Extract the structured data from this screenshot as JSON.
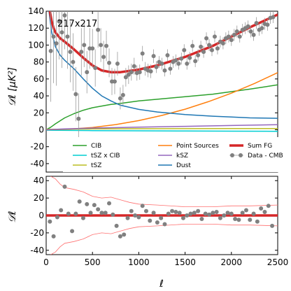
{
  "figure": {
    "panel_label": "217x217",
    "xlabel": "ℓ",
    "ylabel_top": "𝒟ℓ [μK²]",
    "ylabel_bottom": "𝒟ℓ"
  },
  "colors": {
    "cib": "#2ca02c",
    "tsz_x_cib": "#00ced1",
    "tsz": "#bcbd22",
    "point_sources": "#ff7f0e",
    "ksz": "#9467bd",
    "dust": "#1f77b4",
    "sum_fg": "#d62728",
    "data": "#808080",
    "residual_band": "#ff7070"
  },
  "legend": [
    {
      "key": "cib",
      "label": "CIB",
      "kind": "line",
      "color": "#2ca02c"
    },
    {
      "key": "point_sources",
      "label": "Point Sources",
      "kind": "line",
      "color": "#ff7f0e"
    },
    {
      "key": "sum_fg",
      "label": "Sum FG",
      "kind": "thick",
      "color": "#d62728"
    },
    {
      "key": "tsz_x_cib",
      "label": "tSZ x CIB",
      "kind": "line",
      "color": "#00ced1"
    },
    {
      "key": "ksz",
      "label": "kSZ",
      "kind": "line",
      "color": "#9467bd"
    },
    {
      "key": "data",
      "label": "Data - CMB",
      "kind": "points",
      "color": "#808080"
    },
    {
      "key": "tsz",
      "label": "tSZ",
      "kind": "line",
      "color": "#bcbd22"
    },
    {
      "key": "dust",
      "label": "Dust",
      "kind": "line",
      "color": "#1f77b4"
    }
  ],
  "chart_data": [
    {
      "type": "line",
      "panel": "top",
      "xlim": [
        0,
        2500
      ],
      "ylim": [
        -50,
        140
      ],
      "xticks": [
        0,
        500,
        1000,
        1500,
        2000,
        2500
      ],
      "yticks": [
        -40,
        -20,
        0,
        20,
        40,
        60,
        80,
        100,
        120,
        140
      ],
      "legend_position": "lower-center",
      "series": [
        {
          "name": "CIB",
          "key": "cib",
          "x": [
            0,
            50,
            100,
            200,
            300,
            400,
            500,
            600,
            700,
            800,
            1000,
            1200,
            1500,
            1800,
            2000,
            2200,
            2500
          ],
          "y": [
            0,
            3,
            7,
            14,
            19,
            23,
            26,
            28,
            30,
            31,
            34,
            36,
            39,
            42,
            45,
            48,
            53
          ]
        },
        {
          "name": "tSZ x CIB",
          "key": "tsz_x_cib",
          "x": [
            0,
            500,
            1000,
            1500,
            2000,
            2500
          ],
          "y": [
            -0.5,
            -1,
            -1.3,
            -1.5,
            -1.7,
            -1.8
          ]
        },
        {
          "name": "tSZ",
          "key": "tsz",
          "x": [
            0,
            500,
            1000,
            1500,
            2000,
            2500
          ],
          "y": [
            0.5,
            1,
            1.2,
            1.3,
            1.4,
            1.5
          ]
        },
        {
          "name": "Point Sources",
          "key": "point_sources",
          "x": [
            0,
            250,
            500,
            750,
            1000,
            1250,
            1500,
            1750,
            2000,
            2250,
            2500
          ],
          "y": [
            0,
            0.7,
            2.7,
            6.1,
            10.8,
            16.9,
            24.3,
            33.1,
            43.2,
            54.7,
            67.5
          ]
        },
        {
          "name": "kSZ",
          "key": "ksz",
          "x": [
            0,
            200,
            500,
            1000,
            1500,
            2000,
            2500
          ],
          "y": [
            0,
            1,
            2,
            3,
            4,
            5,
            6
          ]
        },
        {
          "name": "Dust",
          "key": "dust",
          "x": [
            30,
            60,
            100,
            150,
            200,
            300,
            400,
            500,
            600,
            700,
            800,
            1000,
            1200,
            1500,
            1800,
            2000,
            2200,
            2500
          ],
          "y": [
            140,
            115,
            98,
            88,
            82,
            72,
            60,
            49,
            40,
            34,
            29,
            24,
            21,
            18,
            16,
            15,
            14,
            13.5
          ]
        },
        {
          "name": "Sum FG",
          "key": "sum_fg",
          "x": [
            40,
            60,
            80,
            100,
            150,
            200,
            300,
            400,
            500,
            600,
            700,
            800,
            1000,
            1200,
            1500,
            1800,
            2000,
            2200,
            2500
          ],
          "y": [
            140,
            128,
            120,
            115,
            108,
            104,
            95,
            85,
            76,
            70,
            68,
            68,
            71,
            76,
            86,
            99,
            110,
            121,
            136
          ]
        }
      ],
      "points": {
        "name": "Data - CMB",
        "key": "data",
        "x": [
          50,
          80,
          110,
          140,
          170,
          200,
          230,
          260,
          290,
          320,
          350,
          380,
          410,
          440,
          470,
          500,
          530,
          560,
          590,
          620,
          650,
          680,
          710,
          740,
          770,
          800,
          830,
          860,
          890,
          920,
          950,
          980,
          1010,
          1040,
          1070,
          1100,
          1130,
          1160,
          1190,
          1220,
          1250,
          1280,
          1310,
          1340,
          1370,
          1400,
          1430,
          1460,
          1490,
          1520,
          1550,
          1580,
          1610,
          1640,
          1670,
          1700,
          1730,
          1760,
          1790,
          1820,
          1850,
          1880,
          1910,
          1940,
          1970,
          2000,
          2030,
          2060,
          2090,
          2120,
          2150,
          2180,
          2210,
          2240,
          2270,
          2300,
          2330,
          2360,
          2390,
          2420,
          2450
        ],
        "y": [
          93,
          110,
          102,
          128,
          115,
          135,
          110,
          92,
          80,
          42,
          13,
          92,
          100,
          68,
          96,
          96,
          73,
          118,
          100,
          86,
          99,
          79,
          57,
          57,
          78,
          37,
          41,
          62,
          65,
          68,
          75,
          67,
          68,
          90,
          72,
          70,
          69,
          87,
          74,
          80,
          78,
          70,
          88,
          72,
          80,
          82,
          78,
          84,
          94,
          78,
          85,
          99,
          81,
          88,
          98,
          92,
          108,
          100,
          94,
          110,
          96,
          104,
          102,
          108,
          110,
          106,
          112,
          116,
          110,
          118,
          120,
          122,
          116,
          112,
          126,
          118,
          120,
          125,
          124,
          132,
          133
        ],
        "err": [
          60,
          55,
          50,
          45,
          42,
          40,
          38,
          36,
          34,
          32,
          30,
          28,
          26,
          25,
          24,
          23,
          22,
          21,
          20,
          19,
          18,
          17,
          16,
          15,
          14,
          13,
          12,
          11,
          11,
          10,
          10,
          9,
          9,
          9,
          8,
          8,
          8,
          8,
          7,
          7,
          7,
          7,
          7,
          7,
          7,
          7,
          7,
          7,
          7,
          7,
          7,
          7,
          7,
          7,
          7,
          7,
          7,
          7,
          7,
          7,
          7,
          7,
          7,
          7,
          7,
          7,
          7,
          7,
          7,
          7,
          7,
          7,
          7,
          7,
          7,
          7,
          7,
          7,
          7,
          7,
          7
        ]
      }
    },
    {
      "type": "scatter",
      "panel": "bottom",
      "xlabel": "ℓ",
      "xlim": [
        0,
        2500
      ],
      "ylim": [
        -45,
        45
      ],
      "xticks": [
        0,
        500,
        1000,
        1500,
        2000,
        2500
      ],
      "yticks": [
        -40,
        -20,
        0,
        20,
        40
      ],
      "zero_line": {
        "name": "Sum FG",
        "key": "sum_fg",
        "y": 0
      },
      "band_upper": {
        "x": [
          50,
          100,
          150,
          200,
          300,
          400,
          500,
          600,
          700,
          800,
          900,
          1000,
          1200,
          1500,
          1800,
          2000,
          2200,
          2500
        ],
        "y": [
          45,
          42,
          36,
          32,
          30,
          27,
          22,
          20,
          21,
          18,
          15,
          13,
          12,
          10,
          10,
          11,
          11,
          12
        ]
      },
      "band_lower": {
        "x": [
          50,
          100,
          150,
          200,
          300,
          400,
          500,
          600,
          700,
          800,
          900,
          1000,
          1200,
          1500,
          1800,
          2000,
          2200,
          2500
        ],
        "y": [
          -45,
          -42,
          -36,
          -32,
          -30,
          -27,
          -22,
          -20,
          -21,
          -18,
          -15,
          -13,
          -12,
          -10,
          -10,
          -11,
          -11,
          -12
        ]
      },
      "points": {
        "name": "Data - CMB",
        "key": "data",
        "x": [
          40,
          80,
          120,
          160,
          200,
          240,
          280,
          320,
          360,
          400,
          440,
          480,
          520,
          560,
          600,
          640,
          680,
          720,
          760,
          800,
          840,
          880,
          920,
          960,
          1000,
          1040,
          1080,
          1120,
          1160,
          1200,
          1240,
          1280,
          1320,
          1360,
          1400,
          1440,
          1480,
          1520,
          1560,
          1600,
          1640,
          1680,
          1720,
          1760,
          1800,
          1840,
          1880,
          1920,
          1960,
          2000,
          2040,
          2080,
          2120,
          2160,
          2200,
          2240,
          2280,
          2320,
          2360,
          2400,
          2440
        ],
        "y": [
          -7,
          -24,
          -2,
          6,
          33,
          2,
          -18,
          2,
          16,
          -3,
          13,
          3,
          12,
          7,
          3,
          3,
          14,
          1,
          -12,
          -24,
          -22,
          -3,
          5,
          0,
          -2,
          11,
          5,
          -6,
          3,
          -8,
          -3,
          -10,
          2,
          5,
          4,
          3,
          -3,
          0,
          2,
          3,
          5,
          -4,
          2,
          1,
          3,
          4,
          -3,
          0,
          3,
          2,
          -4,
          -5,
          3,
          6,
          -5,
          2,
          -7,
          8,
          4,
          11,
          -12
        ]
      }
    }
  ]
}
